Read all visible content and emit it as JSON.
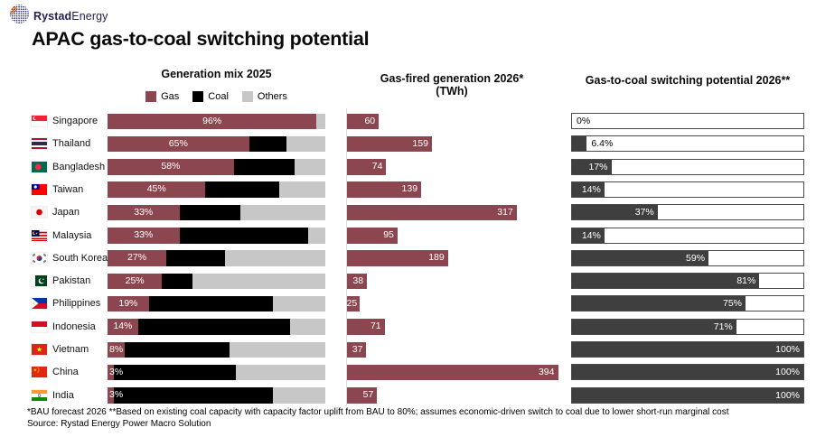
{
  "brand": {
    "name_bold": "Rystad",
    "name_regular": "Energy",
    "logo_icon": "rystad-globe-icon",
    "navy": "#232355",
    "orange": "#E8731A"
  },
  "title": "APAC gas-to-coal switching potential",
  "panels": {
    "generation_mix": {
      "title": "Generation mix 2025",
      "legend": [
        {
          "label": "Gas",
          "color": "#8C4650"
        },
        {
          "label": "Coal",
          "color": "#000000"
        },
        {
          "label": "Others",
          "color": "#C7C7C7"
        }
      ]
    },
    "gas_fired": {
      "title": "Gas-fired generation 2026*",
      "subtitle": "(TWh)"
    },
    "switching": {
      "title": "Gas-to-coal switching potential 2026**"
    }
  },
  "countries": [
    {
      "name": "Singapore",
      "flag": "singapore"
    },
    {
      "name": "Thailand",
      "flag": "thailand"
    },
    {
      "name": "Bangladesh",
      "flag": "bangladesh"
    },
    {
      "name": "Taiwan",
      "flag": "taiwan"
    },
    {
      "name": "Japan",
      "flag": "japan"
    },
    {
      "name": "Malaysia",
      "flag": "malaysia"
    },
    {
      "name": "South Korea",
      "flag": "south-korea"
    },
    {
      "name": "Pakistan",
      "flag": "pakistan"
    },
    {
      "name": "Philippines",
      "flag": "philippines"
    },
    {
      "name": "Indonesia",
      "flag": "indonesia"
    },
    {
      "name": "Vietnam",
      "flag": "vietnam"
    },
    {
      "name": "China",
      "flag": "china"
    },
    {
      "name": "India",
      "flag": "india"
    }
  ],
  "chart_data": [
    {
      "type": "bar",
      "subtype": "stacked-horizontal-percent",
      "title": "Generation mix 2025",
      "categories": [
        "Singapore",
        "Thailand",
        "Bangladesh",
        "Taiwan",
        "Japan",
        "Malaysia",
        "South Korea",
        "Pakistan",
        "Philippines",
        "Indonesia",
        "Vietnam",
        "China",
        "India"
      ],
      "series": [
        {
          "name": "Gas",
          "color": "#8C4650",
          "values": [
            96,
            65,
            58,
            45,
            33,
            33,
            27,
            25,
            19,
            14,
            8,
            3,
            3
          ]
        },
        {
          "name": "Coal",
          "color": "#000000",
          "values": [
            0,
            17,
            28,
            34,
            28,
            59,
            27,
            14,
            57,
            70,
            48,
            56,
            73
          ]
        },
        {
          "name": "Others",
          "color": "#C7C7C7",
          "values": [
            4,
            18,
            14,
            21,
            39,
            8,
            46,
            61,
            24,
            16,
            44,
            41,
            24
          ]
        }
      ],
      "data_labels": [
        "96%",
        "65%",
        "58%",
        "45%",
        "33%",
        "33%",
        "27%",
        "25%",
        "19%",
        "14%",
        "8%",
        "3%",
        "3%"
      ],
      "xlim": [
        0,
        100
      ],
      "legend_position": "top",
      "grid": false
    },
    {
      "type": "bar",
      "subtype": "horizontal",
      "title": "Gas-fired generation 2026* (TWh)",
      "categories": [
        "Singapore",
        "Thailand",
        "Bangladesh",
        "Taiwan",
        "Japan",
        "Malaysia",
        "South Korea",
        "Pakistan",
        "Philippines",
        "Indonesia",
        "Vietnam",
        "China",
        "India"
      ],
      "values": [
        60,
        159,
        74,
        139,
        317,
        95,
        189,
        38,
        25,
        71,
        37,
        394,
        57
      ],
      "data_labels": [
        "60",
        "159",
        "74",
        "139",
        "317",
        "95",
        "189",
        "38",
        "25",
        "71",
        "37",
        "394",
        "57"
      ],
      "bar_color": "#8C4650",
      "xlim": [
        0,
        400
      ],
      "grid": false
    },
    {
      "type": "bar",
      "subtype": "horizontal-progress",
      "title": "Gas-to-coal switching potential 2026**",
      "categories": [
        "Singapore",
        "Thailand",
        "Bangladesh",
        "Taiwan",
        "Japan",
        "Malaysia",
        "South Korea",
        "Pakistan",
        "Philippines",
        "Indonesia",
        "Vietnam",
        "China",
        "India"
      ],
      "values": [
        0,
        6.4,
        17,
        14,
        37,
        14,
        59,
        81,
        75,
        71,
        100,
        100,
        100
      ],
      "data_labels": [
        "0%",
        "6.4%",
        "17%",
        "14%",
        "37%",
        "14%",
        "59%",
        "81%",
        "75%",
        "71%",
        "100%",
        "100%",
        "100%"
      ],
      "fill_color": "#3F3F3F",
      "outline_color": "#4A4A4A",
      "xlim": [
        0,
        100
      ],
      "grid": false
    }
  ],
  "footnotes": {
    "line1": "*BAU forecast 2026  **Based on existing coal capacity with capacity factor uplift from BAU to 80%; assumes economic-driven switch to coal due to lower short-run marginal cost",
    "line2": "Source: Rystad Energy Power Macro Solution"
  }
}
